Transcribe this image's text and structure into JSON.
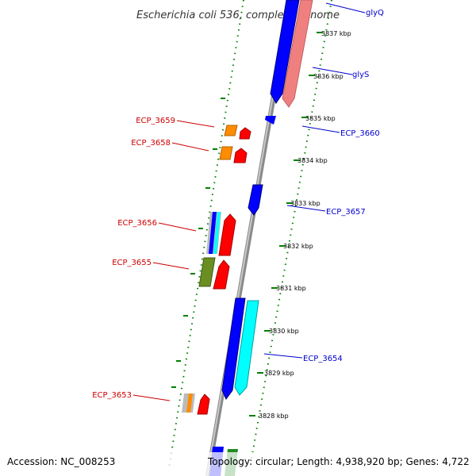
{
  "title": "Escherichia coli 536, complete genome",
  "footer": {
    "accession": "Accession: NC_008253",
    "topology": "Topology: circular; Length: 4,938,920 bp; Genes: 4,722"
  },
  "ticks": [
    "3837 kbp",
    "3836 kbp",
    "3835 kbp",
    "3834 kbp",
    "3833 kbp",
    "3832 kbp",
    "3831 kbp",
    "3830 kbp",
    "3829 kbp",
    "3828 kbp"
  ],
  "genes_right": [
    "glyQ",
    "glyS",
    "ECP_3660",
    "ECP_3657",
    "ECP_3654"
  ],
  "genes_left": [
    "ECP_3659",
    "ECP_3658",
    "ECP_3656",
    "ECP_3655",
    "ECP_3653"
  ],
  "colors": {
    "blue": "#0000ff",
    "red": "#ff0000",
    "pink": "#f08080",
    "cyan": "#00ffff",
    "orange": "#ff8c00",
    "olive": "#6b8e23",
    "gray": "#bbbbbb",
    "backbone": "#888888",
    "dots": "#008000"
  }
}
